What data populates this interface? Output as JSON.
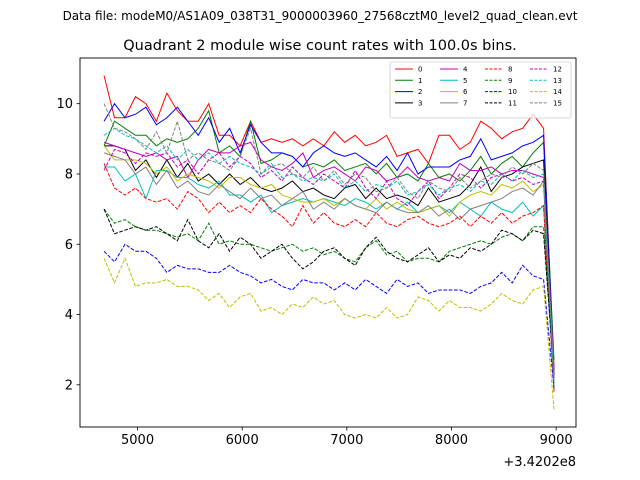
{
  "figure": {
    "suptitle": "Data file: modeM0/AS1A09_038T31_9000003960_27568cztM0_level2_quad_clean.evt"
  },
  "chart_data": {
    "type": "line",
    "title": "Quadrant 2 module wise count rates with 100.0s bins.",
    "xlabel": "",
    "ylabel": "",
    "x_offset_label": "+3.4202e8",
    "xlim": [
      4450,
      9190
    ],
    "ylim": [
      0.8,
      11.3
    ],
    "xticks": [
      5000,
      6000,
      7000,
      8000,
      9000
    ],
    "yticks": [
      2,
      4,
      6,
      8,
      10
    ],
    "grid": false,
    "legend_position": "top-right",
    "legend_columns": 4,
    "x": [
      4680,
      4780,
      4880,
      4980,
      5080,
      5180,
      5280,
      5380,
      5480,
      5580,
      5680,
      5780,
      5880,
      5980,
      6080,
      6180,
      6280,
      6380,
      6480,
      6580,
      6680,
      6780,
      6880,
      6980,
      7080,
      7180,
      7280,
      7380,
      7480,
      7580,
      7680,
      7780,
      7880,
      7980,
      8080,
      8180,
      8280,
      8380,
      8480,
      8580,
      8680,
      8780,
      8880,
      8980
    ],
    "series": [
      {
        "name": "0",
        "color": "#ff0000",
        "dash": "solid",
        "values": [
          10.8,
          9.6,
          9.6,
          10.2,
          10.0,
          9.5,
          10.3,
          9.8,
          9.5,
          9.5,
          10.0,
          9.1,
          9.1,
          8.8,
          9.5,
          8.9,
          9.0,
          8.9,
          9.0,
          8.8,
          9.0,
          8.8,
          9.2,
          8.9,
          9.1,
          8.8,
          8.9,
          9.1,
          8.5,
          8.6,
          8.7,
          8.3,
          9.1,
          9.1,
          8.7,
          8.9,
          9.5,
          9.3,
          9.0,
          9.2,
          9.3,
          9.7,
          9.3,
          2.4
        ]
      },
      {
        "name": "1",
        "color": "#008000",
        "dash": "solid",
        "values": [
          8.8,
          9.5,
          9.3,
          9.1,
          9.1,
          8.8,
          9.0,
          8.9,
          9.0,
          9.3,
          9.8,
          8.6,
          8.8,
          8.5,
          9.5,
          8.3,
          8.4,
          8.6,
          8.5,
          8.2,
          8.3,
          8.2,
          8.4,
          8.1,
          8.2,
          8.3,
          8.0,
          8.3,
          7.9,
          8.0,
          7.8,
          8.3,
          7.9,
          8.0,
          7.8,
          8.1,
          8.5,
          8.0,
          8.3,
          8.5,
          8.2,
          8.6,
          8.9,
          2.7
        ]
      },
      {
        "name": "2",
        "color": "#0000ff",
        "dash": "solid",
        "values": [
          9.5,
          10.0,
          9.6,
          9.7,
          9.9,
          9.4,
          9.6,
          9.9,
          9.5,
          9.1,
          9.6,
          8.9,
          9.3,
          8.6,
          9.4,
          8.9,
          8.6,
          8.6,
          8.5,
          8.2,
          8.6,
          8.8,
          8.6,
          8.5,
          8.6,
          8.4,
          8.2,
          8.5,
          8.1,
          8.6,
          8.0,
          8.2,
          8.2,
          8.2,
          8.4,
          8.5,
          9.0,
          8.4,
          8.5,
          8.6,
          8.8,
          8.9,
          9.1,
          2.3
        ]
      },
      {
        "name": "3",
        "color": "#000000",
        "dash": "solid",
        "values": [
          8.8,
          8.8,
          8.7,
          8.1,
          8.4,
          7.9,
          8.4,
          7.9,
          8.3,
          7.8,
          8.0,
          7.7,
          8.0,
          7.7,
          7.9,
          7.6,
          7.5,
          7.6,
          7.8,
          7.5,
          7.6,
          7.4,
          7.3,
          7.6,
          7.7,
          7.3,
          7.6,
          7.3,
          7.4,
          7.3,
          7.1,
          7.6,
          7.2,
          7.3,
          7.4,
          7.7,
          8.2,
          7.5,
          7.9,
          8.0,
          8.2,
          8.3,
          8.4,
          2.2
        ]
      },
      {
        "name": "4",
        "color": "#bf00bf",
        "dash": "solid",
        "values": [
          8.9,
          8.8,
          8.7,
          8.6,
          8.5,
          8.6,
          8.4,
          8.5,
          7.9,
          8.4,
          8.7,
          8.6,
          8.6,
          8.8,
          8.9,
          8.4,
          8.2,
          8.1,
          8.3,
          8.6,
          7.9,
          8.1,
          8.2,
          8.0,
          7.8,
          8.2,
          8.1,
          7.8,
          7.9,
          8.2,
          7.9,
          7.8,
          7.9,
          7.8,
          8.3,
          8.1,
          8.1,
          8.2,
          8.0,
          8.1,
          8.1,
          8.0,
          7.9,
          2.5
        ]
      },
      {
        "name": "5",
        "color": "#00bfbf",
        "dash": "solid",
        "values": [
          8.2,
          8.2,
          7.8,
          8.0,
          7.3,
          8.1,
          8.1,
          7.9,
          7.9,
          7.7,
          7.6,
          7.8,
          7.4,
          7.4,
          7.2,
          7.4,
          6.9,
          7.1,
          7.2,
          7.3,
          7.2,
          7.3,
          7.2,
          7.1,
          7.3,
          7.2,
          7.0,
          7.2,
          7.0,
          7.2,
          6.9,
          7.0,
          7.1,
          6.9,
          7.2,
          7.0,
          6.8,
          7.2,
          7.0,
          6.9,
          7.2,
          6.8,
          7.1,
          2.0
        ]
      },
      {
        "name": "6",
        "color": "#bfbf00",
        "dash": "solid",
        "values": [
          8.8,
          8.4,
          8.4,
          8.4,
          8.3,
          8.0,
          8.2,
          7.8,
          8.0,
          7.9,
          7.8,
          7.6,
          7.9,
          7.9,
          7.7,
          7.6,
          7.7,
          7.4,
          7.3,
          7.2,
          7.2,
          7.3,
          7.1,
          7.3,
          7.1,
          7.0,
          7.3,
          7.0,
          7.2,
          7.0,
          6.9,
          7.0,
          7.1,
          6.8,
          7.2,
          7.4,
          7.5,
          7.4,
          7.7,
          7.6,
          7.8,
          7.5,
          7.7,
          2.1
        ]
      },
      {
        "name": "7",
        "color": "#808080",
        "dash": "solid",
        "values": [
          8.6,
          8.5,
          8.4,
          8.0,
          8.2,
          7.7,
          8.1,
          7.6,
          7.8,
          7.5,
          7.4,
          7.7,
          7.5,
          7.3,
          7.6,
          7.3,
          7.4,
          7.1,
          7.3,
          7.5,
          7.0,
          7.2,
          7.0,
          7.3,
          7.1,
          7.0,
          6.9,
          7.2,
          7.0,
          6.9,
          6.9,
          7.1,
          6.8,
          7.0,
          6.7,
          7.0,
          7.1,
          7.2,
          7.3,
          7.5,
          7.6,
          7.4,
          7.8,
          2.3
        ]
      },
      {
        "name": "8",
        "color": "#ff0000",
        "dash": "dashed",
        "values": [
          8.3,
          7.6,
          7.4,
          7.6,
          7.3,
          7.2,
          7.3,
          7.0,
          7.5,
          7.3,
          6.9,
          7.2,
          6.9,
          7.1,
          6.9,
          7.3,
          7.0,
          6.8,
          6.5,
          7.1,
          6.6,
          6.9,
          6.6,
          6.5,
          6.7,
          6.5,
          6.9,
          6.6,
          6.5,
          6.7,
          6.8,
          6.6,
          6.5,
          6.6,
          6.8,
          6.5,
          6.8,
          6.6,
          6.9,
          6.6,
          6.8,
          6.9,
          7.1,
          1.8
        ]
      },
      {
        "name": "9",
        "color": "#008000",
        "dash": "dashed",
        "values": [
          7.0,
          6.6,
          6.7,
          6.5,
          6.4,
          6.4,
          6.3,
          6.2,
          6.3,
          6.1,
          6.6,
          6.0,
          6.1,
          6.0,
          6.0,
          5.9,
          5.8,
          5.9,
          6.0,
          5.8,
          5.9,
          5.7,
          5.8,
          5.6,
          5.5,
          5.9,
          6.1,
          5.7,
          5.8,
          5.5,
          5.6,
          5.6,
          5.5,
          5.8,
          5.9,
          6.0,
          6.1,
          6.0,
          6.2,
          6.3,
          6.1,
          6.5,
          6.5,
          2.2
        ]
      },
      {
        "name": "10",
        "color": "#0000ff",
        "dash": "dashed",
        "values": [
          5.8,
          5.5,
          6.0,
          5.8,
          5.8,
          5.6,
          5.2,
          5.4,
          5.3,
          5.3,
          5.2,
          5.2,
          5.4,
          5.2,
          5.1,
          4.9,
          5.0,
          4.8,
          4.7,
          5.0,
          4.9,
          4.9,
          4.7,
          4.9,
          4.7,
          5.0,
          4.8,
          4.6,
          5.0,
          4.8,
          4.9,
          4.6,
          4.7,
          4.7,
          4.7,
          4.6,
          4.8,
          4.9,
          5.2,
          4.9,
          5.4,
          5.1,
          5.0,
          1.9
        ]
      },
      {
        "name": "11",
        "color": "#000000",
        "dash": "dashed",
        "values": [
          7.0,
          6.3,
          6.4,
          6.5,
          6.4,
          6.5,
          6.3,
          6.1,
          6.7,
          6.1,
          5.9,
          6.3,
          5.8,
          6.2,
          6.0,
          5.6,
          5.8,
          6.0,
          5.6,
          5.3,
          5.5,
          5.8,
          5.9,
          5.6,
          5.4,
          5.9,
          6.2,
          5.8,
          5.6,
          5.5,
          5.7,
          5.9,
          5.5,
          5.7,
          5.6,
          5.9,
          5.8,
          6.0,
          6.4,
          6.3,
          6.1,
          6.4,
          6.3,
          2.3
        ]
      },
      {
        "name": "12",
        "color": "#bf00bf",
        "dash": "dashed",
        "values": [
          8.1,
          8.7,
          8.6,
          8.3,
          8.6,
          8.5,
          8.6,
          8.2,
          8.4,
          8.0,
          8.4,
          8.6,
          8.2,
          8.5,
          8.3,
          7.9,
          8.1,
          7.8,
          8.2,
          7.9,
          7.7,
          8.0,
          7.8,
          7.6,
          8.1,
          7.6,
          7.3,
          7.8,
          7.3,
          7.1,
          7.5,
          7.8,
          7.3,
          7.6,
          8.0,
          7.9,
          7.6,
          7.9,
          8.0,
          7.8,
          7.9,
          7.7,
          7.8,
          2.2
        ]
      },
      {
        "name": "13",
        "color": "#00bfbf",
        "dash": "dashed",
        "values": [
          9.1,
          9.3,
          9.1,
          9.0,
          8.8,
          8.6,
          8.8,
          8.4,
          8.7,
          8.4,
          8.6,
          8.3,
          8.5,
          8.3,
          8.2,
          8.0,
          8.3,
          7.9,
          8.0,
          7.8,
          7.9,
          7.8,
          8.0,
          7.6,
          7.8,
          7.5,
          7.7,
          7.6,
          7.8,
          7.4,
          7.5,
          7.7,
          7.4,
          7.6,
          7.7,
          7.5,
          7.8,
          7.7,
          8.0,
          7.8,
          8.1,
          7.9,
          8.0,
          2.0
        ]
      },
      {
        "name": "14",
        "color": "#bfbf00",
        "dash": "dashed",
        "values": [
          5.6,
          4.9,
          5.6,
          4.8,
          4.9,
          4.9,
          5.0,
          4.8,
          4.8,
          4.7,
          4.4,
          4.6,
          4.2,
          4.5,
          4.6,
          4.1,
          4.2,
          4.0,
          4.3,
          4.2,
          4.5,
          4.3,
          4.4,
          4.0,
          3.9,
          4.0,
          3.9,
          4.2,
          3.9,
          4.0,
          4.5,
          4.4,
          4.1,
          4.4,
          4.2,
          4.2,
          4.1,
          4.3,
          4.6,
          4.4,
          4.3,
          4.7,
          4.8,
          1.3
        ]
      },
      {
        "name": "15",
        "color": "#808080",
        "dash": "dashed",
        "values": [
          10.0,
          9.3,
          9.2,
          9.0,
          8.7,
          9.2,
          8.6,
          9.5,
          8.4,
          8.6,
          8.4,
          8.3,
          8.1,
          8.5,
          9.3,
          8.0,
          8.2,
          8.3,
          8.0,
          7.9,
          8.2,
          7.8,
          8.1,
          7.7,
          8.0,
          7.9,
          7.5,
          7.6,
          7.9,
          7.5,
          7.3,
          7.8,
          7.6,
          7.5,
          7.9,
          7.6,
          7.8,
          8.0,
          7.9,
          8.2,
          8.0,
          8.3,
          8.1,
          2.1
        ]
      }
    ]
  }
}
